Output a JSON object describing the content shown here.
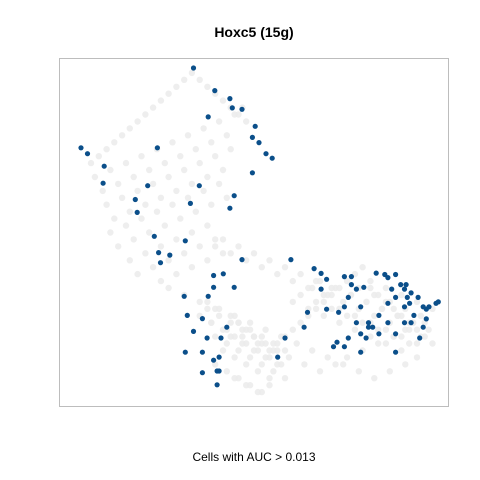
{
  "chart_data": {
    "type": "scatter",
    "title": "Hoxc5 (15g)",
    "xlabel": "Cells with AUC > 0.013",
    "ylabel": "",
    "xlim": [
      0,
      100
    ],
    "ylim": [
      0,
      100
    ],
    "grid": false,
    "axes_ticks": false,
    "colors": {
      "background_cells": "#ebebeb",
      "highlighted_cells": "#0b4f8a",
      "frame": "#bdbdbd"
    },
    "series": [
      {
        "role": "background",
        "x": [
          8,
          10,
          12,
          14,
          16,
          18,
          20,
          22,
          24,
          26,
          28,
          30,
          32,
          34,
          36,
          38,
          40,
          42,
          44,
          46,
          48,
          9,
          13,
          17,
          21,
          25,
          29,
          33,
          37,
          41,
          45,
          47,
          11,
          15,
          19,
          23,
          27,
          31,
          35,
          39,
          43,
          12,
          16,
          20,
          24,
          28,
          32,
          36,
          40,
          44,
          14,
          18,
          22,
          26,
          30,
          34,
          38,
          42,
          13,
          17,
          21,
          25,
          29,
          33,
          37,
          41,
          15,
          19,
          23,
          27,
          31,
          35,
          39,
          43,
          18,
          22,
          26,
          30,
          34,
          38,
          20,
          24,
          28,
          32,
          36,
          40,
          26,
          30,
          34,
          38,
          42,
          28,
          32,
          36,
          40,
          44,
          46,
          48,
          50,
          52,
          54,
          56,
          58,
          60,
          62,
          64,
          66,
          68,
          70,
          72,
          74,
          76,
          78,
          80,
          82,
          84,
          86,
          88,
          90,
          92,
          94,
          96,
          60,
          64,
          68,
          72,
          76,
          80,
          84,
          88,
          92,
          62,
          66,
          70,
          74,
          78,
          82,
          86,
          90,
          65,
          69,
          73,
          77,
          81,
          85,
          89,
          93,
          67,
          71,
          75,
          79,
          83,
          87,
          91,
          40,
          44,
          48,
          52,
          56,
          60,
          64,
          68,
          42,
          46,
          50,
          54,
          58,
          62,
          66,
          70,
          38,
          41,
          45,
          49,
          53,
          57,
          61,
          65,
          69,
          36,
          39,
          43,
          47,
          51,
          55,
          59,
          63,
          67,
          71,
          74,
          78,
          82,
          86,
          90,
          94,
          72,
          76,
          80,
          84,
          88,
          92,
          75,
          79,
          83,
          87,
          91,
          95,
          77,
          81,
          85,
          89,
          93,
          80,
          84,
          88,
          92,
          96,
          73,
          77,
          81,
          85,
          89,
          40,
          43,
          46,
          49,
          52,
          55,
          58,
          39,
          42,
          45,
          48,
          51,
          54,
          57,
          38,
          41,
          44,
          47,
          50,
          53,
          56,
          40,
          43,
          46,
          49,
          52,
          42,
          45,
          48,
          51,
          54,
          44,
          47,
          50,
          53,
          56,
          46,
          49,
          52,
          55,
          58,
          45,
          48,
          51,
          54
        ],
        "y": [
          70,
          72,
          74,
          76,
          78,
          80,
          82,
          84,
          86,
          88,
          90,
          92,
          94,
          96,
          94,
          92,
          90,
          88,
          86,
          84,
          82,
          66,
          68,
          70,
          72,
          74,
          76,
          78,
          80,
          82,
          84,
          86,
          62,
          64,
          66,
          68,
          70,
          72,
          74,
          76,
          78,
          58,
          60,
          62,
          64,
          66,
          68,
          70,
          72,
          74,
          54,
          56,
          58,
          60,
          62,
          64,
          66,
          68,
          50,
          52,
          54,
          56,
          58,
          60,
          62,
          64,
          46,
          48,
          50,
          52,
          54,
          56,
          58,
          60,
          42,
          44,
          46,
          48,
          50,
          52,
          38,
          40,
          42,
          44,
          46,
          48,
          36,
          38,
          40,
          42,
          44,
          34,
          32,
          30,
          28,
          26,
          24,
          22,
          20,
          18,
          16,
          18,
          20,
          22,
          24,
          26,
          28,
          30,
          32,
          34,
          36,
          38,
          40,
          34,
          32,
          30,
          28,
          26,
          24,
          22,
          20,
          18,
          30,
          28,
          26,
          24,
          22,
          20,
          18,
          16,
          14,
          32,
          30,
          28,
          26,
          24,
          22,
          20,
          18,
          34,
          32,
          30,
          28,
          26,
          24,
          22,
          20,
          36,
          34,
          32,
          30,
          28,
          26,
          24,
          46,
          44,
          42,
          40,
          38,
          36,
          34,
          32,
          48,
          46,
          44,
          42,
          40,
          38,
          36,
          34,
          30,
          28,
          26,
          24,
          22,
          20,
          18,
          16,
          14,
          26,
          24,
          22,
          20,
          18,
          16,
          14,
          12,
          10,
          12,
          14,
          16,
          18,
          20,
          22,
          24,
          28,
          26,
          24,
          22,
          20,
          18,
          32,
          30,
          28,
          26,
          24,
          22,
          34,
          32,
          30,
          28,
          26,
          36,
          34,
          32,
          30,
          28,
          12,
          10,
          8,
          10,
          12,
          20,
          18,
          16,
          14,
          12,
          10,
          8,
          24,
          22,
          20,
          18,
          16,
          14,
          12,
          28,
          26,
          24,
          22,
          20,
          18,
          16,
          12,
          10,
          8,
          6,
          4,
          16,
          14,
          12,
          10,
          8,
          20,
          18,
          16,
          14,
          12,
          24,
          22,
          20,
          18,
          16,
          8,
          6,
          4,
          6
        ]
      },
      {
        "role": "highlighted",
        "name": "",
        "x": [
          34.4,
          5.4,
          7.1,
          11.4,
          11.1,
          19.9,
          19.4,
          22.6,
          38.2,
          39.9,
          43.8,
          44.4,
          46.9,
          50.3,
          49.6,
          51.3,
          53.1,
          54.7,
          49.6,
          44.9,
          43.8,
          35.9,
          33.6,
          25.1,
          24.3,
          25.9,
          28.3,
          32.3,
          39.6,
          39.6,
          44.9,
          38.2,
          32.0,
          25.4,
          32.8,
          34.4,
          36.7,
          36.7,
          39.6,
          40.5,
          40.5,
          41.0,
          43.0,
          41.5,
          32.3,
          36.7,
          37.9,
          41.0,
          42.1,
          46.9,
          59.5,
          65.5,
          67.3,
          68.7,
          67.3,
          68.7,
          71.8,
          73.3,
          75.1,
          76.4,
          74.3,
          73.3,
          77.5,
          79.5,
          81.5,
          83.7,
          84.5,
          86.5,
          88.8,
          89.2,
          90.5,
          90.1,
          92.3,
          93.6,
          94.4,
          95.1,
          96.9,
          97.5,
          94.4,
          93.6,
          90.5,
          88.8,
          86.5,
          84.5,
          82.2,
          80.6,
          78.9,
          77.5,
          74.3,
          73.3,
          71.4,
          70.5,
          76.4,
          79.5,
          82.2,
          84.5,
          86.5,
          88.8,
          91.2,
          92.7,
          75.1,
          78.3,
          85.5,
          87.8,
          89.5,
          62.9,
          56.1,
          63.8,
          58.0,
          77.5,
          86.5
        ],
        "y": [
          97.4,
          74.4,
          72.7,
          69.1,
          64.2,
          55.8,
          59.5,
          63.5,
          83.3,
          90.9,
          88.6,
          85.9,
          85.5,
          80.6,
          77.4,
          75.9,
          72.7,
          71.4,
          67.2,
          60.6,
          57.0,
          63.5,
          58.4,
          74.4,
          48.9,
          41.3,
          43.5,
          47.6,
          37.6,
          34.2,
          34.2,
          31.6,
          31.6,
          44.2,
          26.1,
          21.5,
          25.2,
          15.5,
          13.2,
          6.1,
          10.1,
          14.1,
          22.7,
          19.6,
          15.5,
          9.6,
          19.6,
          10.1,
          38.1,
          42.2,
          42.2,
          39.6,
          38.2,
          36.5,
          33.7,
          27.9,
          27.0,
          37.3,
          37.3,
          33.7,
          31.3,
          28.6,
          28.6,
          24.0,
          38.3,
          37.9,
          37.0,
          37.9,
          33.7,
          35.0,
          32.6,
          29.6,
          31.3,
          28.6,
          27.9,
          28.6,
          29.6,
          30.0,
          25.1,
          22.7,
          24.0,
          24.0,
          20.8,
          24.0,
          20.8,
          22.7,
          19.6,
          20.8,
          19.6,
          17.1,
          18.4,
          17.1,
          24.0,
          22.7,
          26.1,
          29.6,
          31.3,
          28.6,
          26.1,
          19.6,
          35.0,
          34.2,
          33.7,
          35.0,
          31.3,
          22.7,
          14.1,
          27.0,
          19.6,
          15.5,
          15.5
        ]
      }
    ]
  }
}
